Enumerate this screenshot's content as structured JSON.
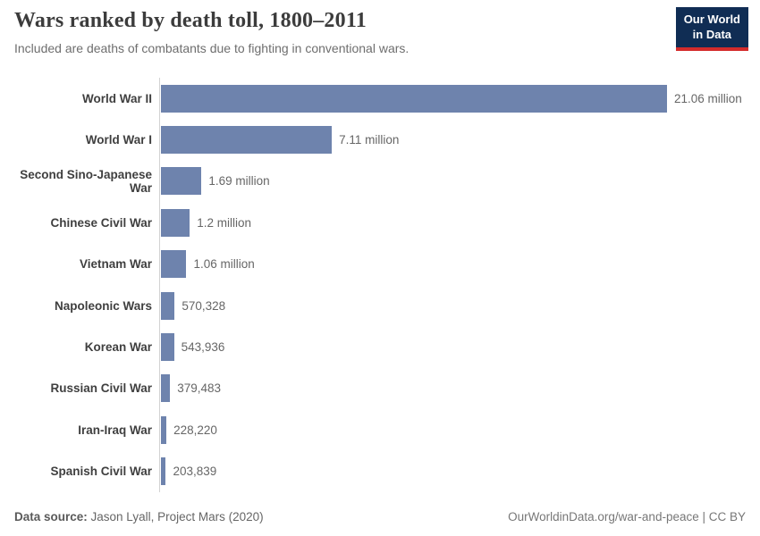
{
  "header": {
    "title": "Wars ranked by death toll, 1800–2011",
    "subtitle": "Included are deaths of combatants due to fighting in conventional wars."
  },
  "logo": {
    "line1": "Our World",
    "line2": "in Data",
    "bg_color": "#102d54",
    "accent_color": "#d42b2b"
  },
  "chart_data": {
    "type": "bar",
    "orientation": "horizontal",
    "title": "Wars ranked by death toll, 1800–2011",
    "xlabel": "",
    "ylabel": "",
    "grid": false,
    "legend": false,
    "xlim": [
      0,
      21060000
    ],
    "bar_color": "#6e83ad",
    "categories": [
      "World War II",
      "World War I",
      "Second Sino-Japanese War",
      "Chinese Civil War",
      "Vietnam War",
      "Napoleonic Wars",
      "Korean War",
      "Russian Civil War",
      "Iran-Iraq War",
      "Spanish Civil War"
    ],
    "values": [
      21060000,
      7110000,
      1690000,
      1200000,
      1060000,
      570328,
      543936,
      379483,
      228220,
      203839
    ],
    "value_labels": [
      "21.06 million",
      "7.11 million",
      "1.69 million",
      "1.2 million",
      "1.06 million",
      "570,328",
      "543,936",
      "379,483",
      "228,220",
      "203,839"
    ]
  },
  "footer": {
    "source_label": "Data source:",
    "source_text": " Jason Lyall, Project Mars (2020)",
    "attribution": "OurWorldinData.org/war-and-peace | CC BY"
  }
}
